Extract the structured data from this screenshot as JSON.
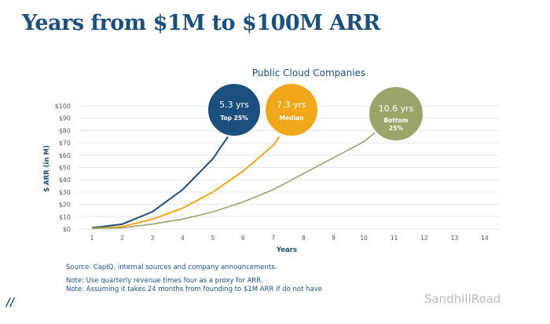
{
  "header": {
    "title": "Years from $1M to $100M ARR"
  },
  "notes": {
    "source": "Source: CapIQ, internal sources and company announcements.",
    "note1": "Note: Use quarterly revenue times four as a proxy for ARR.",
    "note2": "Note: Assuming it takes 24 months from founding to $1M ARR if do not have"
  },
  "watermark": "SandhillRoad",
  "logo_icon": "slash-mark-logo",
  "chart_data": {
    "type": "line",
    "title": "Public Cloud Companies",
    "xlabel": "Years",
    "ylabel": "$ ARR (in M)",
    "xlim": [
      1,
      14
    ],
    "ylim": [
      0,
      100
    ],
    "xticks": [
      "1",
      "2",
      "3",
      "4",
      "5",
      "6",
      "7",
      "8",
      "9",
      "10",
      "11",
      "12",
      "13",
      "14"
    ],
    "yticks": [
      "$0",
      "$10",
      "$20",
      "$30",
      "$40",
      "$50",
      "$60",
      "$70",
      "$80",
      "$90",
      "$100"
    ],
    "grid": "horizontal",
    "series": [
      {
        "name": "Top 25%",
        "color": "#1b4f7e",
        "label": "5.3 yrs",
        "sublabel": "Top 25%",
        "x": [
          1,
          2,
          3,
          4,
          5,
          5.5
        ],
        "y": [
          1,
          4,
          14,
          32,
          57,
          75
        ]
      },
      {
        "name": "Median",
        "color": "#f0a81a",
        "label": "7.3 yrs",
        "sublabel": "Median",
        "x": [
          1,
          2,
          3,
          4,
          5,
          6,
          7,
          7.2
        ],
        "y": [
          0.5,
          2,
          8,
          17,
          30,
          47,
          68,
          75
        ]
      },
      {
        "name": "Bottom 25%",
        "color": "#9aa56a",
        "label": "10.6 yrs",
        "sublabel": "Bottom 25%",
        "x": [
          1,
          2,
          3,
          4,
          5,
          6,
          7,
          8,
          9,
          10,
          10.4
        ],
        "y": [
          0.5,
          1,
          4,
          8,
          14,
          22,
          32,
          45,
          58,
          71,
          79
        ]
      }
    ]
  }
}
